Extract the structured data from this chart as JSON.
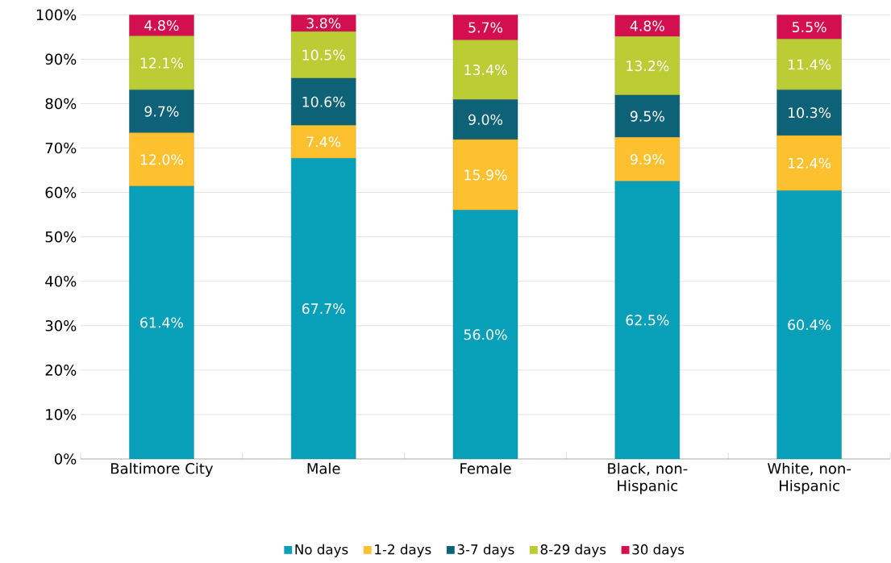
{
  "chart_data": {
    "type": "bar",
    "stacked": true,
    "categories": [
      "Baltimore City",
      "Male",
      "Female",
      "Black, non-Hispanic",
      "White, non-Hispanic"
    ],
    "series": [
      {
        "name": "No days",
        "color": "#08a0b8",
        "values": [
          61.4,
          67.7,
          56.0,
          62.5,
          60.4
        ],
        "value_labels": [
          "61.4%",
          "67.7%",
          "56.0%",
          "62.5%",
          "60.4%"
        ]
      },
      {
        "name": "1-2 days",
        "color": "#fdc02f",
        "values": [
          12.0,
          7.4,
          15.9,
          9.9,
          12.4
        ],
        "value_labels": [
          "12.0%",
          "7.4%",
          "15.9%",
          "9.9%",
          "12.4%"
        ]
      },
      {
        "name": "3-7 days",
        "color": "#0d6278",
        "values": [
          9.7,
          10.6,
          9.0,
          9.5,
          10.3
        ],
        "value_labels": [
          "9.7%",
          "10.6%",
          "9.0%",
          "9.5%",
          "10.3%"
        ]
      },
      {
        "name": "8-29 days",
        "color": "#bccc34",
        "values": [
          12.1,
          10.5,
          13.4,
          13.2,
          11.4
        ],
        "value_labels": [
          "12.1%",
          "10.5%",
          "13.4%",
          "13.2%",
          "11.4%"
        ]
      },
      {
        "name": "30 days",
        "color": "#d40f50",
        "values": [
          4.8,
          3.8,
          5.7,
          4.8,
          5.5
        ],
        "value_labels": [
          "4.8%",
          "3.8%",
          "5.7%",
          "4.8%",
          "5.5%"
        ]
      }
    ],
    "ylim": [
      0,
      100
    ],
    "yticks": [
      {
        "value": 0,
        "label": "0%"
      },
      {
        "value": 10,
        "label": "10%"
      },
      {
        "value": 20,
        "label": "20%"
      },
      {
        "value": 30,
        "label": "30%"
      },
      {
        "value": 40,
        "label": "40%"
      },
      {
        "value": 50,
        "label": "50%"
      },
      {
        "value": 60,
        "label": "60%"
      },
      {
        "value": 70,
        "label": "70%"
      },
      {
        "value": 80,
        "label": "80%"
      },
      {
        "value": 90,
        "label": "90%"
      },
      {
        "value": 100,
        "label": "100%"
      }
    ],
    "grid": "y",
    "legend": "bottom"
  }
}
